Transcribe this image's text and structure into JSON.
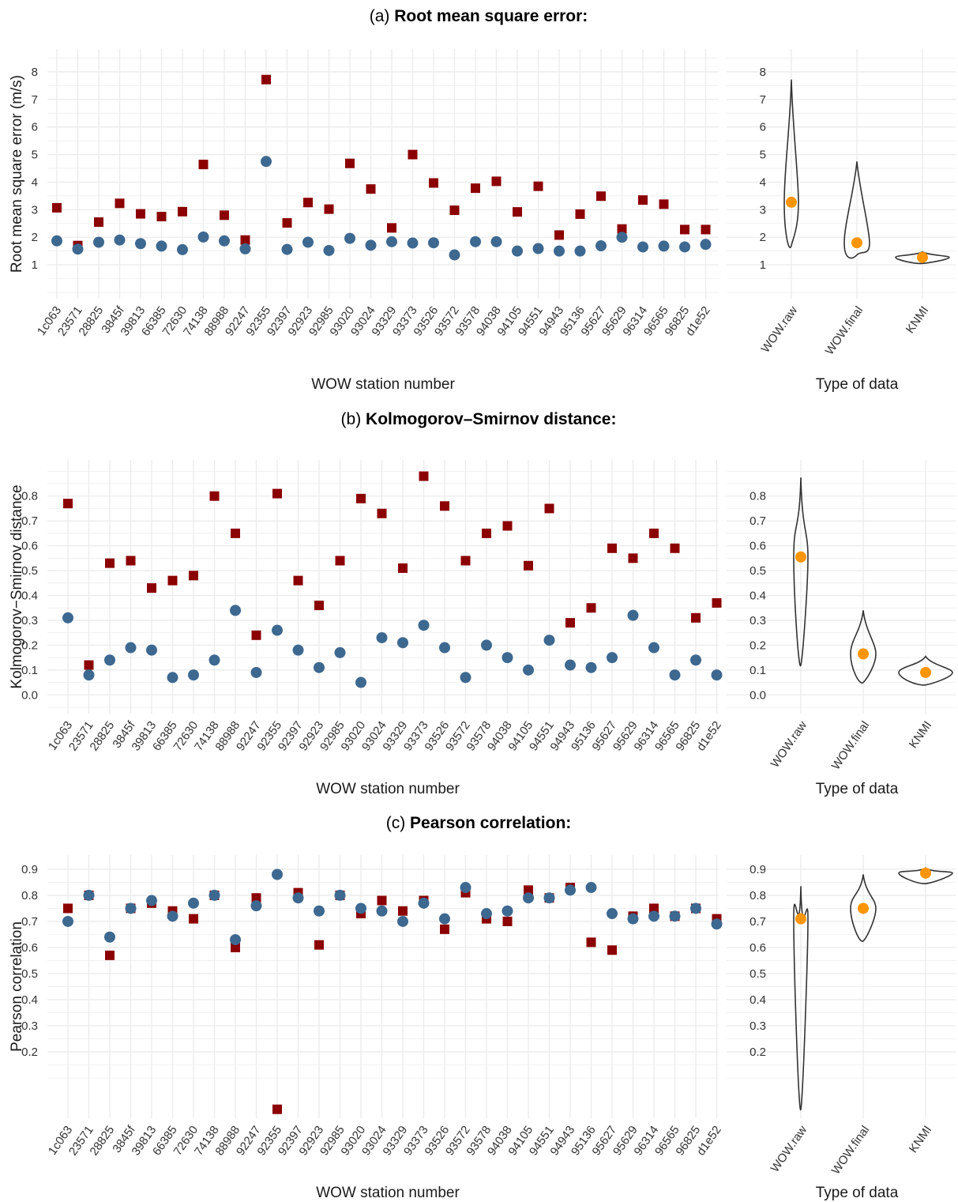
{
  "stations": [
    "1c063",
    "23571",
    "28825",
    "3845f",
    "39813",
    "66385",
    "72630",
    "74138",
    "88988",
    "92247",
    "92355",
    "92397",
    "92923",
    "92985",
    "93020",
    "93024",
    "93329",
    "93373",
    "93526",
    "93572",
    "93578",
    "94038",
    "94105",
    "94551",
    "94943",
    "95136",
    "95627",
    "95629",
    "96314",
    "96565",
    "96825",
    "d1e52"
  ],
  "colors": {
    "raw": "#8b0000",
    "final": "#3d6890",
    "median": "#ff9500",
    "grid": "#ebebeb",
    "violin": "#333333"
  },
  "chart_data": [
    {
      "type": "scatter",
      "panel_label": "(a)",
      "title": "Root mean square error:",
      "xlabel": "WOW station number",
      "ylabel": "Root mean square error (m/s)",
      "yticks": [
        1,
        2,
        3,
        4,
        5,
        6,
        7,
        8
      ],
      "ylim": [
        0.0,
        8.6
      ],
      "series": [
        {
          "key": "raw",
          "marker": "square",
          "values": [
            3.07,
            1.7,
            2.55,
            3.23,
            2.85,
            2.75,
            2.93,
            4.64,
            2.8,
            1.9,
            7.72,
            2.52,
            3.26,
            3.02,
            4.68,
            3.75,
            2.34,
            5.0,
            3.97,
            2.98,
            3.78,
            4.03,
            2.92,
            3.85,
            2.08,
            2.84,
            3.49,
            2.3,
            3.35,
            3.2,
            2.28,
            2.28
          ]
        },
        {
          "key": "final",
          "marker": "circle",
          "values": [
            1.87,
            1.57,
            1.82,
            1.9,
            1.77,
            1.68,
            1.55,
            2.01,
            1.87,
            1.58,
            4.75,
            1.56,
            1.82,
            1.52,
            1.96,
            1.71,
            1.84,
            1.79,
            1.8,
            1.36,
            1.84,
            1.84,
            1.5,
            1.59,
            1.5,
            1.5,
            1.69,
            2.0,
            1.65,
            1.68,
            1.65,
            1.74
          ]
        }
      ],
      "violin": {
        "xlabel": "Type of data",
        "categories": [
          "WOW.raw",
          "WOW.final",
          "KNMI"
        ],
        "medians": [
          3.27,
          1.8,
          1.27
        ],
        "ranges": [
          [
            1.7,
            7.72
          ],
          [
            1.36,
            4.75
          ],
          [
            1.05,
            1.47
          ]
        ]
      }
    },
    {
      "type": "scatter",
      "panel_label": "(b)",
      "title": "Kolmogorov–Smirnov distance:",
      "xlabel": "WOW station number",
      "ylabel": "Kolmogorov−Smirnov distance",
      "yticks": [
        0.0,
        0.1,
        0.2,
        0.3,
        0.4,
        0.5,
        0.6,
        0.7,
        0.8
      ],
      "ylim": [
        -0.05,
        0.92
      ],
      "series": [
        {
          "key": "raw",
          "marker": "square",
          "values": [
            0.77,
            0.12,
            0.53,
            0.54,
            0.43,
            0.46,
            0.48,
            0.8,
            0.65,
            0.24,
            0.81,
            0.46,
            0.36,
            0.54,
            0.79,
            0.73,
            0.51,
            0.88,
            0.76,
            0.54,
            0.65,
            0.68,
            0.52,
            0.75,
            0.29,
            0.35,
            0.59,
            0.55,
            0.65,
            0.59,
            0.31,
            0.37
          ]
        },
        {
          "key": "final",
          "marker": "circle",
          "values": [
            0.31,
            0.08,
            0.14,
            0.19,
            0.18,
            0.07,
            0.08,
            0.14,
            0.34,
            0.09,
            0.26,
            0.18,
            0.11,
            0.17,
            0.05,
            0.23,
            0.21,
            0.28,
            0.19,
            0.07,
            0.2,
            0.15,
            0.1,
            0.22,
            0.12,
            0.11,
            0.15,
            0.32,
            0.19,
            0.08,
            0.14,
            0.08
          ]
        }
      ],
      "violin": {
        "xlabel": "Type of data",
        "categories": [
          "WOW.raw",
          "WOW.final",
          "KNMI"
        ],
        "medians": [
          0.555,
          0.165,
          0.09
        ],
        "ranges": [
          [
            0.12,
            0.875
          ],
          [
            0.05,
            0.34
          ],
          [
            0.04,
            0.155
          ]
        ]
      }
    },
    {
      "type": "scatter",
      "panel_label": "(c)",
      "title": "Pearson correlation:",
      "xlabel": "WOW station number",
      "ylabel": "Pearson correlation",
      "yticks": [
        0.2,
        0.3,
        0.4,
        0.5,
        0.6,
        0.7,
        0.8,
        0.9
      ],
      "ylim": [
        -0.03,
        0.93
      ],
      "series": [
        {
          "key": "raw",
          "marker": "square",
          "values": [
            0.75,
            0.8,
            0.57,
            0.75,
            0.77,
            0.74,
            0.71,
            0.8,
            0.6,
            0.79,
            -0.02,
            0.81,
            0.61,
            0.8,
            0.73,
            0.78,
            0.74,
            0.78,
            0.67,
            0.81,
            0.71,
            0.7,
            0.82,
            0.79,
            0.83,
            0.62,
            0.59,
            0.72,
            0.75,
            0.72,
            0.75,
            0.71
          ]
        },
        {
          "key": "final",
          "marker": "circle",
          "values": [
            0.7,
            0.8,
            0.64,
            0.75,
            0.78,
            0.72,
            0.77,
            0.8,
            0.63,
            0.76,
            0.88,
            0.79,
            0.74,
            0.8,
            0.75,
            0.74,
            0.7,
            0.77,
            0.71,
            0.83,
            0.73,
            0.74,
            0.79,
            0.79,
            0.82,
            0.83,
            0.73,
            0.71,
            0.72,
            0.72,
            0.75,
            0.69
          ]
        }
      ],
      "violin": {
        "xlabel": "Type of data",
        "categories": [
          "WOW.raw",
          "WOW.final",
          "KNMI"
        ],
        "medians": [
          0.71,
          0.75,
          0.885
        ],
        "ranges": [
          [
            -0.02,
            0.835
          ],
          [
            0.625,
            0.88
          ],
          [
            0.845,
            0.905
          ]
        ]
      }
    }
  ]
}
